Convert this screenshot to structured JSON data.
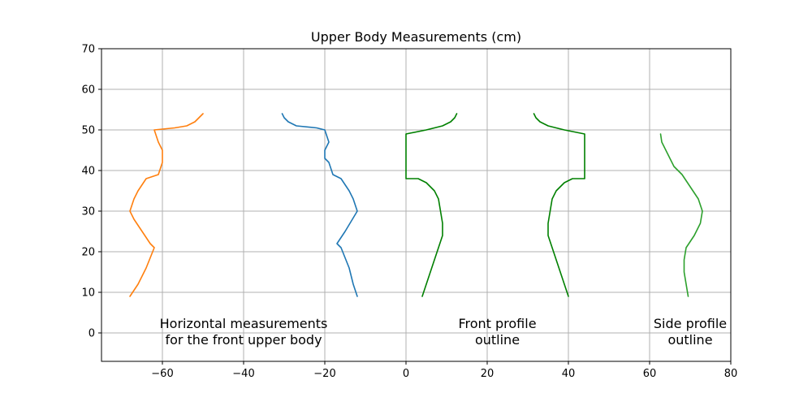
{
  "chart_data": {
    "type": "line",
    "title": "Upper Body Measurements (cm)",
    "xlim": [
      -75,
      80
    ],
    "ylim": [
      -7,
      70
    ],
    "xticks": [
      -60,
      -40,
      -20,
      0,
      20,
      40,
      60,
      80
    ],
    "yticks": [
      0,
      10,
      20,
      30,
      40,
      50,
      60,
      70
    ],
    "xtick_labels": [
      "−60",
      "−40",
      "−20",
      "0",
      "20",
      "40",
      "60",
      "80"
    ],
    "ytick_labels": [
      "0",
      "10",
      "20",
      "30",
      "40",
      "50",
      "60",
      "70"
    ],
    "grid": true,
    "series": [
      {
        "color": "#1f77b4",
        "x": [
          -12,
          -13,
          -14,
          -16,
          -17,
          -15,
          -12,
          -13,
          -14,
          -16,
          -18,
          -19,
          -20,
          -20,
          -19,
          -20,
          -22,
          -27,
          -29,
          -30,
          -30.5
        ],
        "y": [
          9,
          12,
          16,
          21,
          22,
          25,
          30,
          33,
          35,
          38,
          39,
          42,
          43,
          45,
          47,
          50,
          50.5,
          51,
          52,
          53,
          54
        ]
      },
      {
        "color": "#ff7f0e",
        "x": [
          -68,
          -66,
          -64,
          -62,
          -63,
          -65,
          -67,
          -68,
          -67,
          -66,
          -64,
          -61,
          -60,
          -60,
          -61,
          -62,
          -57,
          -54,
          -52,
          -51,
          -50
        ],
        "y": [
          9,
          12,
          16,
          21,
          22,
          25,
          28,
          30,
          33,
          35,
          38,
          39,
          42,
          45,
          47,
          50,
          50.5,
          51,
          52,
          53,
          54
        ]
      },
      {
        "color": "#008000",
        "x": [
          4,
          5,
          6,
          7,
          8,
          9,
          9,
          8.5,
          8,
          7,
          6,
          5,
          3,
          0,
          0,
          0,
          5,
          9,
          11,
          12,
          12.5
        ],
        "y": [
          9,
          12,
          15,
          18,
          21,
          24,
          27,
          30,
          33,
          35,
          36,
          37,
          38,
          38,
          44,
          49,
          50,
          51,
          52,
          53,
          54
        ]
      },
      {
        "color": "#008000",
        "x": [
          40,
          39,
          38,
          37,
          36,
          35,
          35,
          35.5,
          36,
          37,
          38,
          39,
          41,
          44,
          44,
          44,
          39,
          35,
          33,
          32,
          31.5
        ],
        "y": [
          9,
          12,
          15,
          18,
          21,
          24,
          27,
          30,
          33,
          35,
          36,
          37,
          38,
          38,
          44,
          49,
          50,
          51,
          52,
          53,
          54
        ]
      },
      {
        "color": "#2ca02c",
        "x": [
          69.5,
          69,
          68.5,
          68.5,
          69,
          71,
          72.5,
          73,
          72,
          70,
          68,
          66,
          65,
          64,
          63,
          62.7
        ],
        "y": [
          9,
          12,
          15,
          18,
          21,
          24,
          27,
          30,
          33,
          36,
          39,
          41,
          43,
          45,
          47,
          49
        ]
      }
    ],
    "annotations": [
      {
        "lines": [
          "Horizontal measurements",
          "for the front upper body"
        ],
        "x": -40,
        "y": 3
      },
      {
        "lines": [
          "Front profile",
          "outline"
        ],
        "x": 22.5,
        "y": 3
      },
      {
        "lines": [
          "Side profile",
          "outline"
        ],
        "x": 70,
        "y": 3
      }
    ]
  }
}
